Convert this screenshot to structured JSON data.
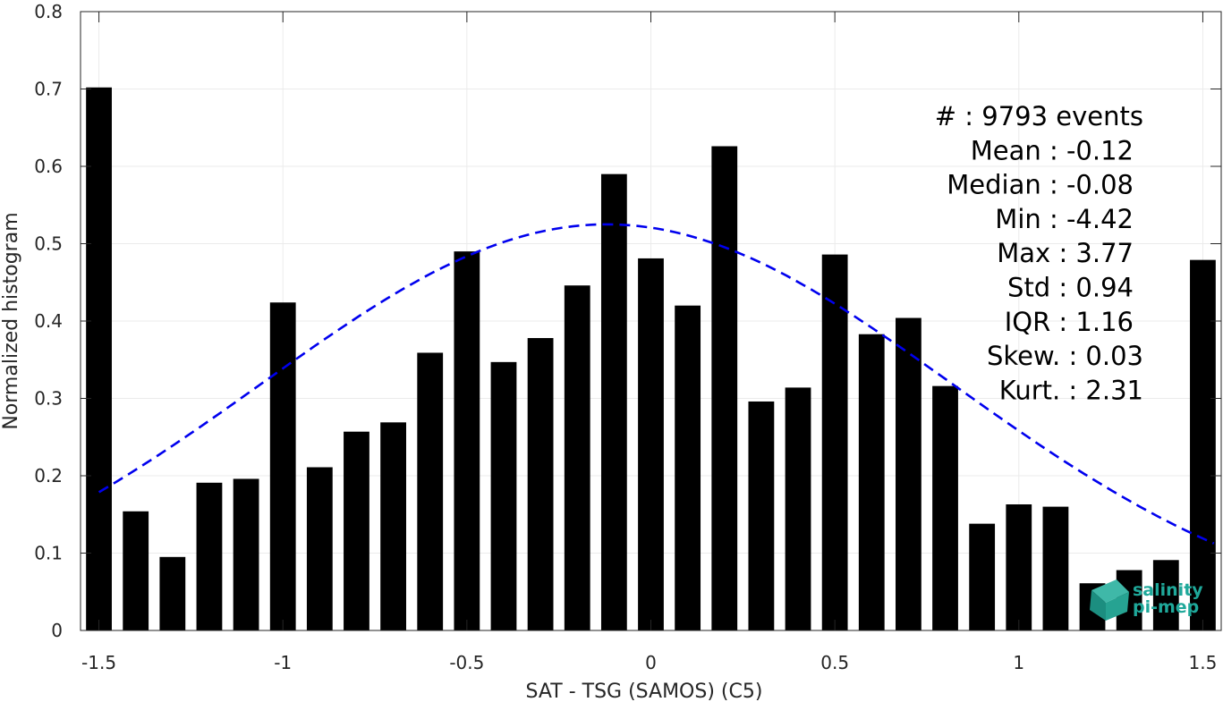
{
  "chart_data": {
    "type": "bar",
    "xlabel": "SAT - TSG (SAMOS) (C5)",
    "ylabel": "Normalized histogram",
    "xlim": [
      -1.55,
      1.55
    ],
    "ylim": [
      0,
      0.8
    ],
    "grid": true,
    "x_ticks": [
      -1.5,
      -1,
      -0.5,
      0,
      0.5,
      1,
      1.5
    ],
    "x_tick_labels": [
      "-1.5",
      "-1",
      "-0.5",
      "0",
      "0.5",
      "1",
      "1.5"
    ],
    "y_ticks": [
      0,
      0.1,
      0.2,
      0.3,
      0.4,
      0.5,
      0.6,
      0.7,
      0.8
    ],
    "y_tick_labels": [
      "0",
      "0.1",
      "0.2",
      "0.3",
      "0.4",
      "0.5",
      "0.6",
      "0.7",
      "0.8"
    ],
    "bar_color": "#000000",
    "bar_width": 0.07,
    "x": [
      -1.5,
      -1.4,
      -1.3,
      -1.2,
      -1.1,
      -1.0,
      -0.9,
      -0.8,
      -0.7,
      -0.6,
      -0.5,
      -0.4,
      -0.3,
      -0.2,
      -0.1,
      0.0,
      0.1,
      0.2,
      0.3,
      0.4,
      0.5,
      0.6,
      0.7,
      0.8,
      0.9,
      1.0,
      1.1,
      1.2,
      1.3,
      1.4,
      1.5
    ],
    "values": [
      0.702,
      0.154,
      0.095,
      0.191,
      0.196,
      0.424,
      0.211,
      0.257,
      0.269,
      0.359,
      0.49,
      0.347,
      0.378,
      0.446,
      0.59,
      0.481,
      0.42,
      0.626,
      0.296,
      0.314,
      0.486,
      0.383,
      0.404,
      0.316,
      0.138,
      0.163,
      0.16,
      0.061,
      0.078,
      0.091,
      0.479
    ],
    "fit_curve": {
      "style": "dashed",
      "color": "#0000ee",
      "mean": -0.12,
      "std": 0.94,
      "x_range": [
        -1.5,
        1.53
      ],
      "peak": 0.525
    },
    "stats": [
      {
        "label": "#  : 9793 events"
      },
      {
        "label": "Mean : -0.12"
      },
      {
        "label": "Median : -0.08"
      },
      {
        "label": "Min : -4.42"
      },
      {
        "label": "Max : 3.77"
      },
      {
        "label": "Std : 0.94"
      },
      {
        "label": "IQR : 1.16"
      },
      {
        "label": "Skew. : 0.03"
      },
      {
        "label": "Kurt. : 2.31"
      }
    ]
  },
  "logo": {
    "line1": "salinity",
    "line2": "pi-mep",
    "color": "#1fa89a"
  }
}
